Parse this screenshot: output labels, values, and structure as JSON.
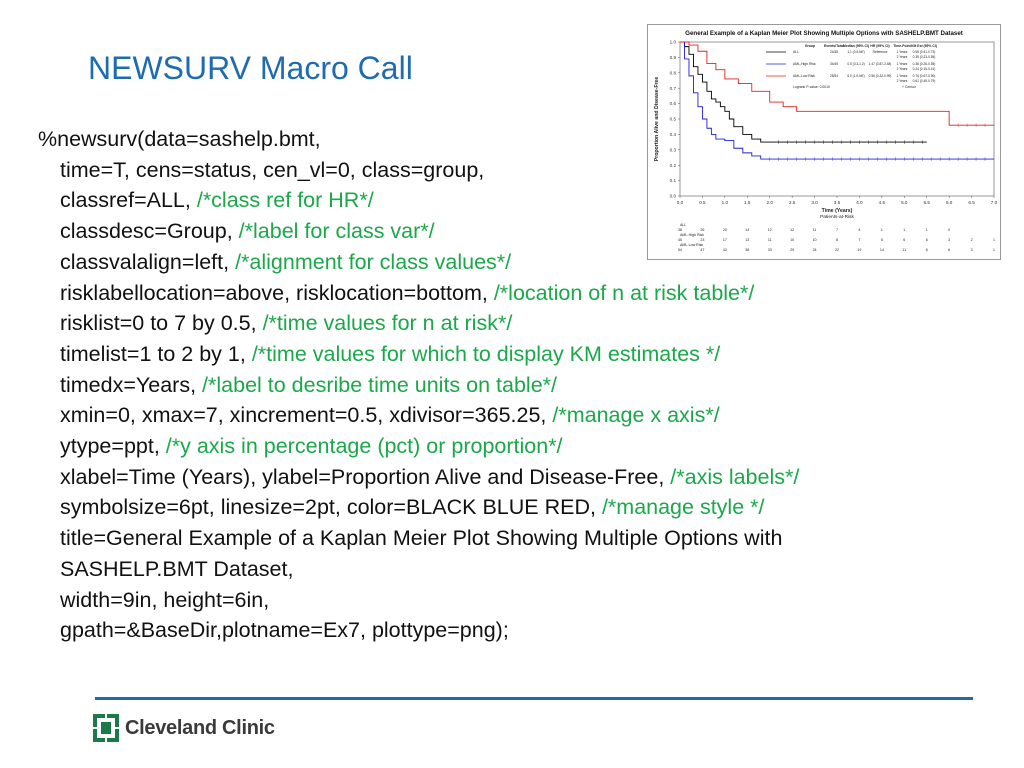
{
  "slide": {
    "title": "NEWSURV Macro Call"
  },
  "code_lines": [
    {
      "code": "%newsurv(data=sashelp.bmt,",
      "comment": ""
    },
    {
      "code": "time=T, cens=status, cen_vl=0, class=group,",
      "comment": ""
    },
    {
      "code": "classref=ALL, ",
      "comment": "/*class ref for HR*/"
    },
    {
      "code": "classdesc=Group, ",
      "comment": "/*label for class var*/"
    },
    {
      "code": "classvalalign=left, ",
      "comment": "/*alignment for class values*/"
    },
    {
      "code": "risklabellocation=above, risklocation=bottom, ",
      "comment": "/*location of n at risk table*/"
    },
    {
      "code": "risklist=0 to 7 by 0.5, ",
      "comment": "/*time values for n at risk*/"
    },
    {
      "code": "timelist=1 to 2 by 1, ",
      "comment": "/*time values for which to display KM estimates */"
    },
    {
      "code": "timedx=Years, ",
      "comment": "/*label to desribe time units on table*/"
    },
    {
      "code": "xmin=0, xmax=7, xincrement=0.5, xdivisor=365.25, ",
      "comment": "/*manage x axis*/"
    },
    {
      "code": "ytype=ppt, ",
      "comment": "/*y axis in percentage (pct) or proportion*/"
    },
    {
      "code": "xlabel=Time (Years), ylabel=Proportion Alive and Disease-Free, ",
      "comment": "/*axis labels*/"
    },
    {
      "code": "symbolsize=6pt, linesize=2pt, color=BLACK BLUE RED, ",
      "comment": "/*manage style */"
    },
    {
      "code": "title=General Example of a Kaplan Meier Plot Showing Multiple Options with",
      "comment": ""
    },
    {
      "code": "SASHELP.BMT Dataset,",
      "comment": ""
    },
    {
      "code": "width=9in, height=6in,",
      "comment": ""
    },
    {
      "code": "gpath=&BaseDir,plotname=Ex7, plottype=png);",
      "comment": ""
    }
  ],
  "colors": {
    "title": "#1f6bb0",
    "comment": "#1aa84a",
    "rule": "#1f6bb0",
    "logo_green": "#1a7a4a"
  },
  "figure": {
    "title": "General Example of a Kaplan Meier Plot Showing Multiple Options with SASHELP.BMT Dataset",
    "ylabel": "Proportion Alive and Disease-Free",
    "xlabel": "Time (Years)",
    "risk_header": "Patients-at-Risk",
    "y_ticks": [
      "0.0",
      "0.1",
      "0.2",
      "0.3",
      "0.4",
      "0.5",
      "0.6",
      "0.7",
      "0.8",
      "0.9",
      "1.0"
    ],
    "x_ticks": [
      "0.0",
      "0.5",
      "1.0",
      "1.5",
      "2.0",
      "2.5",
      "3.0",
      "3.5",
      "4.0",
      "4.5",
      "5.0",
      "5.5",
      "6.0",
      "6.5",
      "7.0"
    ],
    "stats_headers": [
      "Group",
      "Events/Total",
      "Median (95% CI)",
      "HR (95% CI)",
      "Time-Point",
      "KM Est (95% CI)"
    ],
    "stats_rows": [
      {
        "group": "ALL",
        "events": "24/38",
        "median": "1.1 (0.5-NE)",
        "hr": "Reference",
        "tp1": "1 Years",
        "km1": "0.55 (0.41-0.73)",
        "tp2": "2 Years",
        "km2": "0.35 (0.23-0.55)"
      },
      {
        "group": "AML-High Risk",
        "events": "34/45",
        "median": "0.5 (0.3-1.2)",
        "hr": "1.47 (0.87-2.48)",
        "tp1": "1 Years",
        "km1": "0.36 (0.26-0.55)",
        "tp2": "2 Years",
        "km2": "0.24 (0.15-0.41)"
      },
      {
        "group": "AML-Low Risk",
        "events": "25/54",
        "median": "6.0 (1.9-NE)",
        "hr": "0.56 (0.32-0.99)",
        "tp1": "1 Years",
        "km1": "0.76 (0.67-0.90)",
        "tp2": "2 Years",
        "km2": "0.61 (0.49-0.79)"
      }
    ],
    "pvalue": "Logrank P-value: 0.0010",
    "censor_label": "+ Censor",
    "risk_groups": [
      {
        "name": "ALL",
        "values": [
          "38",
          "26",
          "20",
          "14",
          "12",
          "12",
          "11",
          "7",
          "4",
          "1",
          "1",
          "1",
          "0"
        ]
      },
      {
        "name": "AML-High Risk",
        "values": [
          "45",
          "23",
          "17",
          "13",
          "11",
          "10",
          "10",
          "8",
          "7",
          "6",
          "6",
          "6",
          "3",
          "2",
          "1"
        ]
      },
      {
        "name": "AML-Low Risk",
        "values": [
          "54",
          "47",
          "42",
          "36",
          "33",
          "29",
          "24",
          "22",
          "19",
          "14",
          "11",
          "6",
          "6",
          "3",
          "1"
        ]
      }
    ]
  },
  "chart_data": {
    "type": "line",
    "title": "General Example of a Kaplan Meier Plot Showing Multiple Options with SASHELP.BMT Dataset",
    "xlabel": "Time (Years)",
    "ylabel": "Proportion Alive and Disease-Free",
    "xlim": [
      0,
      7
    ],
    "ylim": [
      0,
      1
    ],
    "series": [
      {
        "name": "ALL",
        "color": "#000000",
        "x": [
          0,
          0.1,
          0.2,
          0.3,
          0.4,
          0.5,
          0.6,
          0.7,
          0.8,
          0.9,
          1.0,
          1.1,
          1.2,
          1.4,
          1.6,
          1.8,
          2.0,
          5.5
        ],
        "y": [
          1.0,
          0.97,
          0.92,
          0.84,
          0.79,
          0.74,
          0.68,
          0.63,
          0.61,
          0.58,
          0.55,
          0.5,
          0.45,
          0.4,
          0.37,
          0.35,
          0.35,
          0.35
        ]
      },
      {
        "name": "AML-High Risk",
        "color": "#1f1fdc",
        "x": [
          0,
          0.1,
          0.2,
          0.3,
          0.4,
          0.5,
          0.6,
          0.7,
          0.8,
          1.0,
          1.2,
          1.4,
          1.6,
          1.8,
          7.0
        ],
        "y": [
          1.0,
          0.89,
          0.78,
          0.67,
          0.58,
          0.5,
          0.44,
          0.4,
          0.37,
          0.36,
          0.31,
          0.28,
          0.26,
          0.24,
          0.24
        ]
      },
      {
        "name": "AML-Low Risk",
        "color": "#e32020",
        "x": [
          0,
          0.2,
          0.4,
          0.6,
          0.8,
          1.0,
          1.3,
          1.6,
          2.0,
          2.3,
          2.6,
          3.0,
          6.0,
          7.0
        ],
        "y": [
          1.0,
          0.98,
          0.94,
          0.86,
          0.82,
          0.76,
          0.73,
          0.68,
          0.61,
          0.58,
          0.55,
          0.55,
          0.46,
          0.46
        ]
      }
    ],
    "grid": false,
    "legend": "top-right"
  },
  "footer": {
    "logo_text": "Cleveland Clinic"
  }
}
